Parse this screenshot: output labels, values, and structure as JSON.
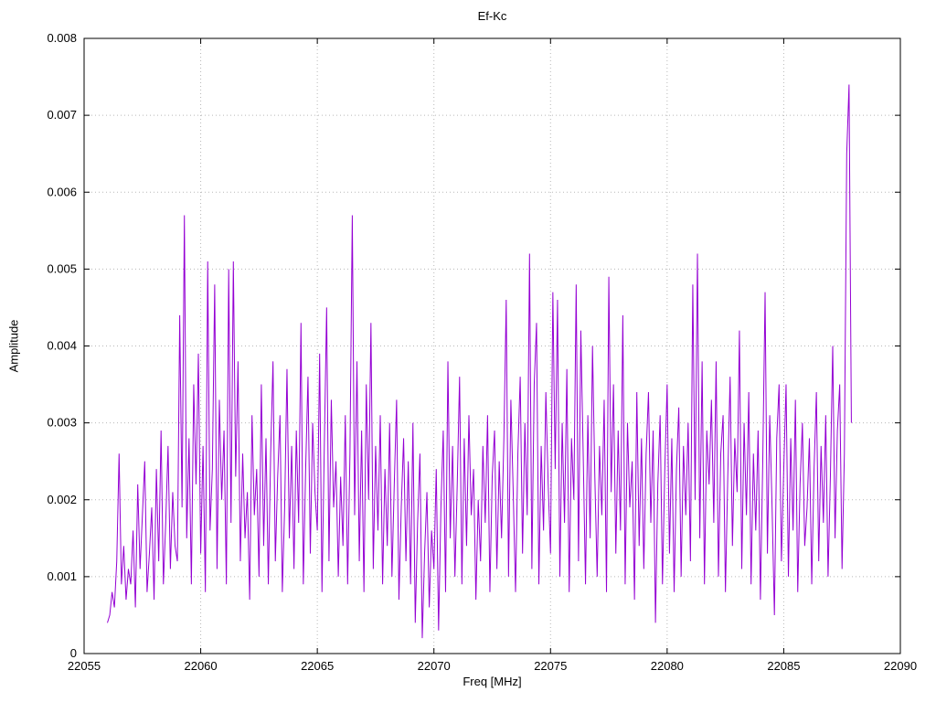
{
  "title": "Ef-Kc",
  "chart_data": {
    "type": "line",
    "title": "Ef-Kc",
    "xlabel": "Freq [MHz]",
    "ylabel": "Amplitude",
    "xlim": [
      22055,
      22090
    ],
    "ylim": [
      0,
      0.008
    ],
    "x_ticks": [
      22055,
      22060,
      22065,
      22070,
      22075,
      22080,
      22085,
      22090
    ],
    "x_tick_labels": [
      "22055",
      "22060",
      "22065",
      "22070",
      "22075",
      "22080",
      "22085",
      "22090"
    ],
    "y_ticks": [
      0,
      0.001,
      0.002,
      0.003,
      0.004,
      0.005,
      0.006,
      0.007,
      0.008
    ],
    "y_tick_labels": [
      "0",
      "0.001",
      "0.002",
      "0.003",
      "0.004",
      "0.005",
      "0.006",
      "0.007",
      "0.008"
    ],
    "grid": true,
    "legend": "none",
    "line_color": "#9400d3",
    "series_name": "Ef-Kc",
    "x_start": 22056.0,
    "x_step": 0.1,
    "amplitude_scale": 0.0001,
    "amplitudes": [
      4,
      5,
      8,
      6,
      12,
      26,
      9,
      14,
      7,
      11,
      9,
      16,
      6,
      22,
      11,
      18,
      25,
      8,
      13,
      19,
      7,
      24,
      12,
      29,
      9,
      17,
      27,
      11,
      21,
      14,
      12,
      44,
      19,
      57,
      15,
      28,
      9,
      35,
      22,
      39,
      13,
      27,
      8,
      51,
      16,
      24,
      48,
      11,
      33,
      20,
      29,
      9,
      50,
      17,
      51,
      23,
      38,
      12,
      26,
      15,
      21,
      7,
      31,
      18,
      24,
      10,
      35,
      14,
      28,
      9,
      26,
      38,
      12,
      23,
      31,
      8,
      19,
      37,
      15,
      27,
      11,
      29,
      17,
      43,
      9,
      24,
      36,
      13,
      30,
      21,
      16,
      39,
      8,
      27,
      45,
      12,
      33,
      19,
      25,
      10,
      23,
      14,
      31,
      9,
      26,
      57,
      18,
      38,
      12,
      29,
      8,
      35,
      20,
      43,
      11,
      27,
      16,
      31,
      9,
      24,
      14,
      30,
      10,
      22,
      33,
      7,
      19,
      28,
      12,
      25,
      9,
      30,
      4,
      17,
      26,
      2,
      13,
      21,
      6,
      16,
      11,
      24,
      3,
      19,
      29,
      8,
      38,
      15,
      27,
      10,
      22,
      36,
      9,
      28,
      14,
      31,
      18,
      24,
      7,
      20,
      12,
      27,
      17,
      31,
      8,
      23,
      29,
      11,
      25,
      15,
      28,
      46,
      10,
      33,
      21,
      8,
      26,
      36,
      13,
      30,
      18,
      52,
      11,
      35,
      43,
      9,
      27,
      16,
      34,
      22,
      13,
      47,
      24,
      46,
      10,
      30,
      17,
      37,
      8,
      28,
      20,
      48,
      12,
      42,
      26,
      9,
      31,
      15,
      40,
      23,
      10,
      27,
      18,
      33,
      8,
      49,
      21,
      35,
      13,
      29,
      16,
      44,
      9,
      30,
      19,
      25,
      7,
      34,
      14,
      28,
      11,
      26,
      34,
      17,
      29,
      4,
      22,
      31,
      9,
      24,
      35,
      13,
      28,
      8,
      24,
      32,
      10,
      27,
      18,
      30,
      12,
      48,
      20,
      52,
      15,
      38,
      9,
      29,
      22,
      33,
      17,
      38,
      10,
      26,
      31,
      8,
      23,
      36,
      14,
      28,
      21,
      42,
      11,
      30,
      18,
      34,
      9,
      26,
      16,
      29,
      7,
      25,
      47,
      13,
      31,
      19,
      5,
      28,
      35,
      12,
      24,
      35,
      10,
      28,
      16,
      33,
      8,
      22,
      30,
      14,
      19,
      28,
      9,
      24,
      34,
      12,
      27,
      17,
      31,
      10,
      23,
      40,
      15,
      29,
      35,
      11,
      26,
      65,
      74,
      30
    ]
  }
}
